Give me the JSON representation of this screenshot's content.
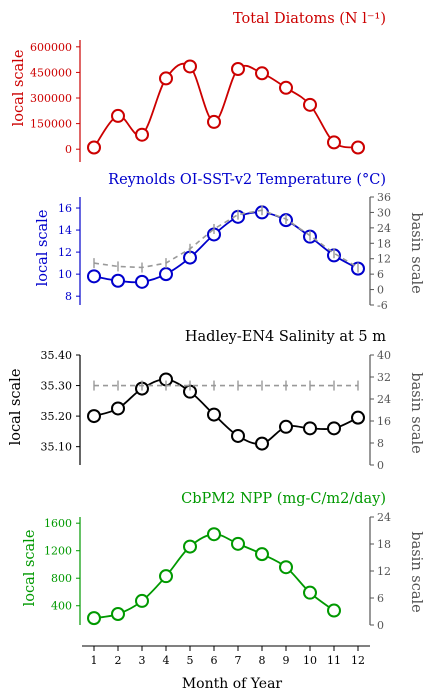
{
  "chart_data": [
    {
      "type": "line",
      "title": "Total Diatoms (N l⁻¹)",
      "ylabel": "local scale",
      "color": "#cc0000",
      "ylim": [
        -75000,
        640000
      ],
      "yticks": [
        0,
        150000,
        300000,
        450000,
        600000
      ],
      "ytick_labels": [
        "0",
        "150000",
        "300000",
        "450000",
        "600000"
      ],
      "x": [
        1,
        2,
        3,
        4,
        5,
        6,
        7,
        8,
        9,
        10,
        11,
        12
      ],
      "series": [
        {
          "values": [
            10000,
            195000,
            85000,
            415000,
            485000,
            160000,
            470000,
            445000,
            360000,
            260000,
            40000,
            10000
          ]
        }
      ]
    },
    {
      "type": "line",
      "title": "Reynolds OI-SST-v2 Temperature (°C)",
      "ylabel": "local scale",
      "y2label": "basin scale",
      "color": "#0000cc",
      "ylim": [
        7.2,
        17.0
      ],
      "yticks": [
        8,
        10,
        12,
        14,
        16
      ],
      "ytick_labels": [
        "8",
        "10",
        "12",
        "14",
        "16"
      ],
      "y2lim": [
        -6,
        36
      ],
      "y2ticks": [
        -6,
        0,
        6,
        12,
        18,
        24,
        30,
        36
      ],
      "y2tick_labels": [
        "-6",
        "0",
        "6",
        "12",
        "18",
        "24",
        "30",
        "36"
      ],
      "x": [
        1,
        2,
        3,
        4,
        5,
        6,
        7,
        8,
        9,
        10,
        11,
        12
      ],
      "series": [
        {
          "axis": "local",
          "values": [
            9.8,
            9.4,
            9.3,
            10.0,
            11.5,
            13.6,
            15.2,
            15.6,
            14.9,
            13.4,
            11.7,
            10.5
          ]
        },
        {
          "axis": "basin",
          "values": [
            11.0,
            10.7,
            10.6,
            11.0,
            12.3,
            14.1,
            15.4,
            15.8,
            15.0,
            13.5,
            11.9,
            10.6
          ],
          "style": "dashed"
        }
      ]
    },
    {
      "type": "line",
      "title": "Hadley-EN4 Salinity at 5 m",
      "ylabel": "local scale",
      "y2label": "basin scale",
      "color": "#000000",
      "ylim": [
        35.04,
        35.4
      ],
      "yticks": [
        35.1,
        35.2,
        35.3,
        35.4
      ],
      "ytick_labels": [
        "35.10",
        "35.20",
        "35.30",
        "35.40"
      ],
      "y2lim": [
        0,
        40
      ],
      "y2ticks": [
        0,
        8,
        16,
        24,
        32,
        40
      ],
      "y2tick_labels": [
        "0",
        "8",
        "16",
        "24",
        "32",
        "40"
      ],
      "x": [
        1,
        2,
        3,
        4,
        5,
        6,
        7,
        8,
        9,
        10,
        11,
        12
      ],
      "series": [
        {
          "axis": "local",
          "values": [
            35.2,
            35.225,
            35.29,
            35.32,
            35.28,
            35.205,
            35.135,
            35.11,
            35.165,
            35.16,
            35.16,
            35.195
          ]
        },
        {
          "axis": "basin",
          "values": [
            35.3,
            35.3,
            35.3,
            35.3,
            35.3,
            35.3,
            35.3,
            35.3,
            35.3,
            35.3,
            35.3,
            35.3
          ],
          "style": "dashed"
        }
      ]
    },
    {
      "type": "line",
      "title": "CbPM2 NPP (mg-C/m2/day)",
      "ylabel": "local scale",
      "y2label": "basin scale",
      "color": "#009900",
      "ylim": [
        120,
        1690
      ],
      "yticks": [
        400,
        800,
        1200,
        1600
      ],
      "ytick_labels": [
        "400",
        "800",
        "1200",
        "1600"
      ],
      "y2lim": [
        0,
        24
      ],
      "y2ticks": [
        0,
        6,
        12,
        18,
        24
      ],
      "y2tick_labels": [
        "0",
        "6",
        "12",
        "18",
        "24"
      ],
      "x": [
        1,
        2,
        3,
        4,
        5,
        6,
        7,
        8,
        9,
        10,
        11
      ],
      "series": [
        {
          "axis": "local",
          "values": [
            220,
            280,
            470,
            830,
            1260,
            1440,
            1300,
            1150,
            960,
            590,
            330
          ]
        }
      ]
    }
  ],
  "xaxis": {
    "label": "Month of Year",
    "ticks": [
      1,
      2,
      3,
      4,
      5,
      6,
      7,
      8,
      9,
      10,
      11,
      12
    ],
    "tick_labels": [
      "1",
      "2",
      "3",
      "4",
      "5",
      "6",
      "7",
      "8",
      "9",
      "10",
      "11",
      "12"
    ]
  },
  "basin_color": "#999999"
}
